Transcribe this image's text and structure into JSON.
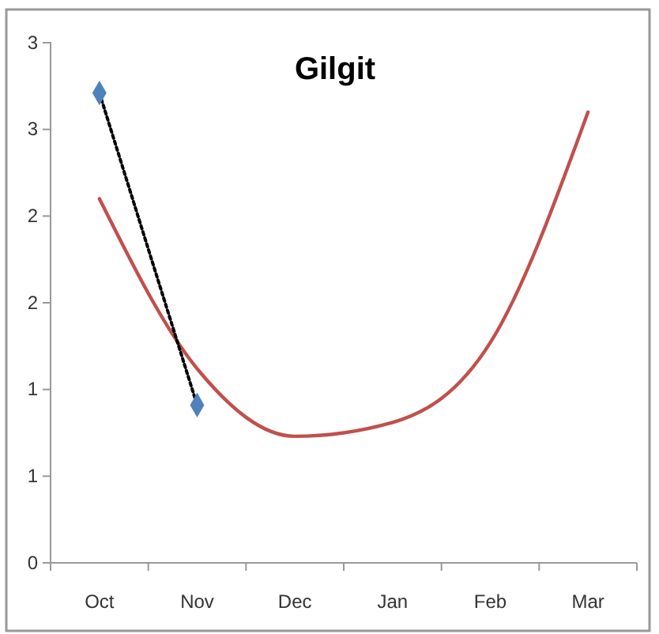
{
  "chart_data": {
    "type": "line",
    "title": "Gilgit",
    "categories": [
      "Oct",
      "Nov",
      "Dec",
      "Jan",
      "Feb",
      "Mar"
    ],
    "ylim": [
      0,
      3
    ],
    "yticks": [
      0,
      {
        "value": 0.5,
        "label": "1"
      },
      1,
      {
        "value": 1.5,
        "label": "2"
      },
      2,
      {
        "value": 2.5,
        "label": "3"
      },
      3
    ],
    "grid": false,
    "series": [
      {
        "color": "#c0504d",
        "values": [
          2.1,
          1.12,
          0.73,
          0.81,
          1.27,
          2.6
        ]
      },
      {
        "type": "line",
        "color": "#000000",
        "line_style": "dotted",
        "values": [
          2.71,
          0.91,
          null,
          null,
          null,
          null
        ]
      },
      {
        "type": "scatter",
        "color": "#4f81bd",
        "marker": "diamond",
        "values": [
          2.71,
          0.91,
          null,
          null,
          null,
          null
        ]
      }
    ]
  }
}
